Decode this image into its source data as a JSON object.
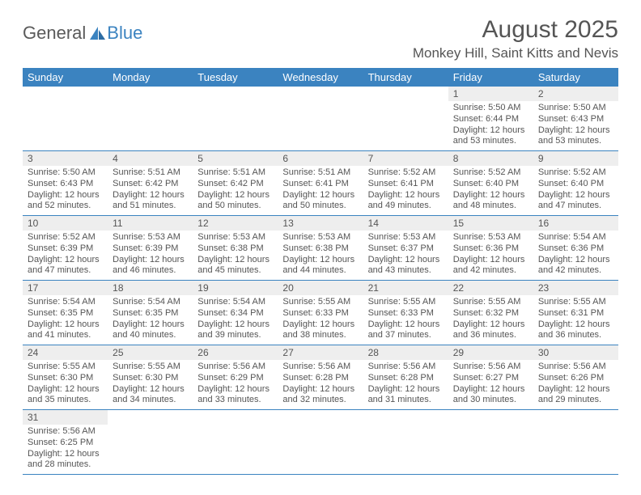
{
  "logo": {
    "part1": "General",
    "part2": "Blue"
  },
  "title": "August 2025",
  "location": "Monkey Hill, Saint Kitts and Nevis",
  "colors": {
    "header_bg": "#3b83c0",
    "header_fg": "#ffffff",
    "border": "#3b83c0",
    "daynum_bg": "#eeeeee",
    "text": "#555555",
    "page_bg": "#ffffff"
  },
  "typography": {
    "title_fontsize": 30,
    "location_fontsize": 17,
    "header_fontsize": 13,
    "cell_fontsize": 11,
    "daynum_fontsize": 12
  },
  "weekdays": [
    "Sunday",
    "Monday",
    "Tuesday",
    "Wednesday",
    "Thursday",
    "Friday",
    "Saturday"
  ],
  "grid": {
    "rows": 6,
    "cols": 7,
    "first_day_col": 5,
    "last_day": 31
  },
  "days": [
    {
      "n": 1,
      "sr": "5:50 AM",
      "ss": "6:44 PM",
      "dl": "12 hours and 53 minutes."
    },
    {
      "n": 2,
      "sr": "5:50 AM",
      "ss": "6:43 PM",
      "dl": "12 hours and 53 minutes."
    },
    {
      "n": 3,
      "sr": "5:50 AM",
      "ss": "6:43 PM",
      "dl": "12 hours and 52 minutes."
    },
    {
      "n": 4,
      "sr": "5:51 AM",
      "ss": "6:42 PM",
      "dl": "12 hours and 51 minutes."
    },
    {
      "n": 5,
      "sr": "5:51 AM",
      "ss": "6:42 PM",
      "dl": "12 hours and 50 minutes."
    },
    {
      "n": 6,
      "sr": "5:51 AM",
      "ss": "6:41 PM",
      "dl": "12 hours and 50 minutes."
    },
    {
      "n": 7,
      "sr": "5:52 AM",
      "ss": "6:41 PM",
      "dl": "12 hours and 49 minutes."
    },
    {
      "n": 8,
      "sr": "5:52 AM",
      "ss": "6:40 PM",
      "dl": "12 hours and 48 minutes."
    },
    {
      "n": 9,
      "sr": "5:52 AM",
      "ss": "6:40 PM",
      "dl": "12 hours and 47 minutes."
    },
    {
      "n": 10,
      "sr": "5:52 AM",
      "ss": "6:39 PM",
      "dl": "12 hours and 47 minutes."
    },
    {
      "n": 11,
      "sr": "5:53 AM",
      "ss": "6:39 PM",
      "dl": "12 hours and 46 minutes."
    },
    {
      "n": 12,
      "sr": "5:53 AM",
      "ss": "6:38 PM",
      "dl": "12 hours and 45 minutes."
    },
    {
      "n": 13,
      "sr": "5:53 AM",
      "ss": "6:38 PM",
      "dl": "12 hours and 44 minutes."
    },
    {
      "n": 14,
      "sr": "5:53 AM",
      "ss": "6:37 PM",
      "dl": "12 hours and 43 minutes."
    },
    {
      "n": 15,
      "sr": "5:53 AM",
      "ss": "6:36 PM",
      "dl": "12 hours and 42 minutes."
    },
    {
      "n": 16,
      "sr": "5:54 AM",
      "ss": "6:36 PM",
      "dl": "12 hours and 42 minutes."
    },
    {
      "n": 17,
      "sr": "5:54 AM",
      "ss": "6:35 PM",
      "dl": "12 hours and 41 minutes."
    },
    {
      "n": 18,
      "sr": "5:54 AM",
      "ss": "6:35 PM",
      "dl": "12 hours and 40 minutes."
    },
    {
      "n": 19,
      "sr": "5:54 AM",
      "ss": "6:34 PM",
      "dl": "12 hours and 39 minutes."
    },
    {
      "n": 20,
      "sr": "5:55 AM",
      "ss": "6:33 PM",
      "dl": "12 hours and 38 minutes."
    },
    {
      "n": 21,
      "sr": "5:55 AM",
      "ss": "6:33 PM",
      "dl": "12 hours and 37 minutes."
    },
    {
      "n": 22,
      "sr": "5:55 AM",
      "ss": "6:32 PM",
      "dl": "12 hours and 36 minutes."
    },
    {
      "n": 23,
      "sr": "5:55 AM",
      "ss": "6:31 PM",
      "dl": "12 hours and 36 minutes."
    },
    {
      "n": 24,
      "sr": "5:55 AM",
      "ss": "6:30 PM",
      "dl": "12 hours and 35 minutes."
    },
    {
      "n": 25,
      "sr": "5:55 AM",
      "ss": "6:30 PM",
      "dl": "12 hours and 34 minutes."
    },
    {
      "n": 26,
      "sr": "5:56 AM",
      "ss": "6:29 PM",
      "dl": "12 hours and 33 minutes."
    },
    {
      "n": 27,
      "sr": "5:56 AM",
      "ss": "6:28 PM",
      "dl": "12 hours and 32 minutes."
    },
    {
      "n": 28,
      "sr": "5:56 AM",
      "ss": "6:28 PM",
      "dl": "12 hours and 31 minutes."
    },
    {
      "n": 29,
      "sr": "5:56 AM",
      "ss": "6:27 PM",
      "dl": "12 hours and 30 minutes."
    },
    {
      "n": 30,
      "sr": "5:56 AM",
      "ss": "6:26 PM",
      "dl": "12 hours and 29 minutes."
    },
    {
      "n": 31,
      "sr": "5:56 AM",
      "ss": "6:25 PM",
      "dl": "12 hours and 28 minutes."
    }
  ],
  "labels": {
    "sunrise": "Sunrise:",
    "sunset": "Sunset:",
    "daylight": "Daylight:"
  }
}
